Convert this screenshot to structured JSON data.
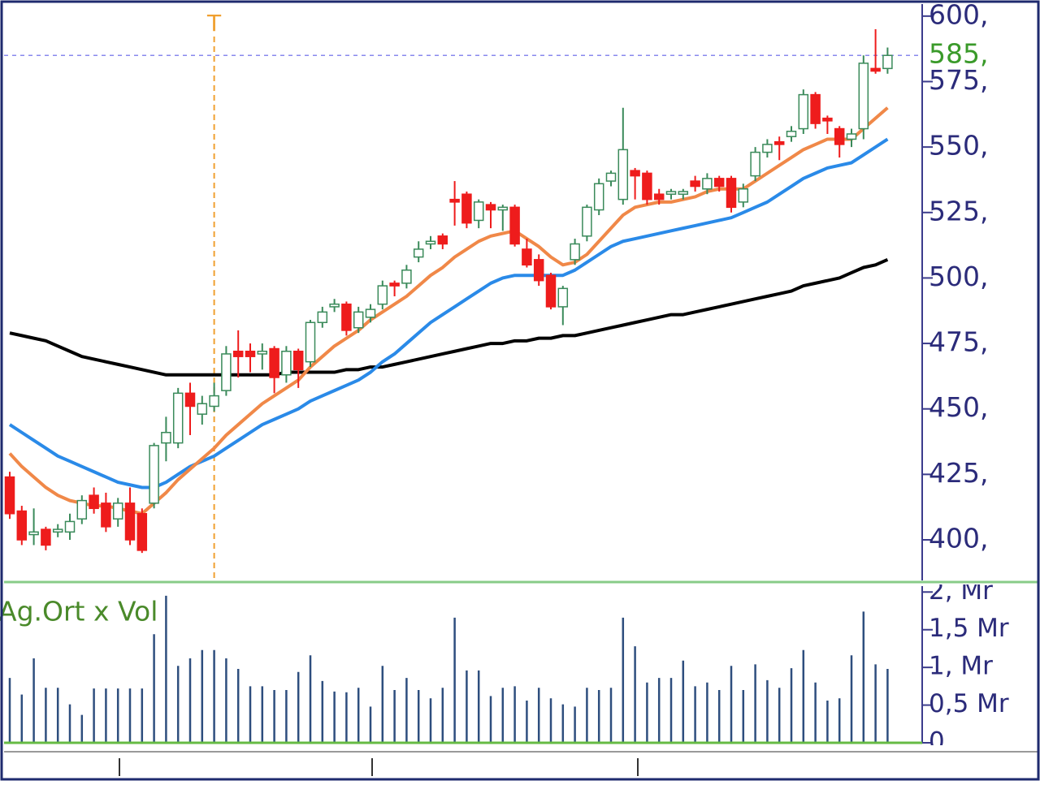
{
  "chart_data": [
    {
      "type": "candlestick",
      "ylim": [
        384.5,
        604.6
      ],
      "yticks": [
        {
          "value": 600,
          "label": "600,"
        },
        {
          "value": 575,
          "label": "575,"
        },
        {
          "value": 550,
          "label": "550,"
        },
        {
          "value": 525,
          "label": "525,"
        },
        {
          "value": 500,
          "label": "500,"
        },
        {
          "value": 475,
          "label": "475,"
        },
        {
          "value": 450,
          "label": "450,"
        },
        {
          "value": 425,
          "label": "425,"
        },
        {
          "value": 400,
          "label": "400,"
        }
      ],
      "last_price": {
        "value": 585,
        "label": "585,",
        "color": "#3a9a2a"
      },
      "annotation": {
        "text": "T",
        "x": 17,
        "color": "#f0a030"
      },
      "up_color": "#3a8a5a",
      "down_color": "#ee1c1c",
      "open": [
        424,
        411,
        402,
        404,
        403,
        403,
        408,
        417,
        414,
        408,
        414,
        410,
        414,
        437,
        437,
        456,
        448,
        451,
        457,
        472,
        472,
        471,
        473,
        463,
        472,
        468,
        483,
        489,
        490,
        481,
        485,
        490,
        498,
        498,
        508,
        513,
        516,
        530,
        532,
        522,
        528,
        526,
        527,
        511,
        507,
        501,
        489,
        507,
        516,
        526,
        537,
        530,
        541,
        540,
        532,
        532,
        532,
        537,
        534,
        538,
        538,
        529,
        539,
        548,
        552,
        554,
        557,
        570,
        561,
        557,
        553,
        557,
        580,
        580
      ],
      "high": [
        426,
        413,
        412,
        405,
        406,
        410,
        417,
        420,
        418,
        416,
        420,
        412,
        437,
        447,
        458,
        460,
        455,
        460,
        474,
        480,
        475,
        475,
        474,
        474,
        473,
        484,
        489,
        492,
        491,
        489,
        490,
        499,
        499,
        505,
        514,
        516,
        517,
        537,
        533,
        530,
        529,
        528,
        528,
        515,
        509,
        502,
        497,
        515,
        528,
        538,
        541,
        565,
        542,
        541,
        534,
        534,
        534,
        539,
        540,
        539,
        539,
        536,
        550,
        553,
        554,
        558,
        572,
        571,
        562,
        558,
        557,
        585,
        595,
        588
      ],
      "low": [
        408,
        398,
        398,
        396,
        401,
        400,
        406,
        410,
        403,
        405,
        398,
        395,
        412,
        430,
        435,
        440,
        444,
        449,
        455,
        462,
        464,
        465,
        456,
        460,
        458,
        466,
        481,
        487,
        478,
        479,
        483,
        488,
        493,
        496,
        506,
        511,
        511,
        520,
        519,
        519,
        519,
        518,
        512,
        504,
        497,
        488,
        482,
        505,
        514,
        524,
        535,
        528,
        530,
        528,
        528,
        530,
        530,
        533,
        532,
        533,
        525,
        527,
        537,
        546,
        545,
        552,
        555,
        557,
        555,
        546,
        550,
        553,
        578,
        578
      ],
      "close": [
        410,
        400,
        403,
        398,
        404,
        407,
        415,
        412,
        405,
        414,
        400,
        396,
        436,
        441,
        456,
        451,
        452,
        455,
        471,
        470,
        470,
        472,
        462,
        472,
        465,
        483,
        487,
        490,
        480,
        487,
        488,
        497,
        497,
        503,
        511,
        514,
        513,
        529,
        521,
        529,
        526,
        527,
        513,
        505,
        499,
        489,
        496,
        513,
        527,
        536,
        540,
        549,
        539,
        530,
        530,
        533,
        533,
        535,
        538,
        535,
        527,
        534,
        548,
        551,
        551,
        556,
        570,
        559,
        560,
        551,
        555,
        582,
        579,
        585
      ],
      "series": [
        {
          "color": "#000000",
          "values": [
            479,
            478,
            477,
            476,
            474,
            472,
            470,
            469,
            468,
            467,
            466,
            465,
            464,
            463,
            463,
            463,
            463,
            463,
            463,
            463,
            463,
            463,
            463,
            464,
            464,
            464,
            464,
            464,
            465,
            465,
            466,
            466,
            467,
            468,
            469,
            470,
            471,
            472,
            473,
            474,
            475,
            475,
            476,
            476,
            477,
            477,
            478,
            478,
            479,
            480,
            481,
            482,
            483,
            484,
            485,
            486,
            486,
            487,
            488,
            489,
            490,
            491,
            492,
            493,
            494,
            495,
            497,
            498,
            499,
            500,
            502,
            504,
            505,
            507
          ]
        },
        {
          "color": "#2a8ae8",
          "values": [
            444,
            441,
            438,
            435,
            432,
            430,
            428,
            426,
            424,
            422,
            421,
            420,
            420,
            422,
            425,
            428,
            430,
            432,
            435,
            438,
            441,
            444,
            446,
            448,
            450,
            453,
            455,
            457,
            459,
            461,
            464,
            468,
            471,
            475,
            479,
            483,
            486,
            489,
            492,
            495,
            498,
            500,
            501,
            501,
            501,
            501,
            501,
            503,
            506,
            509,
            512,
            514,
            515,
            516,
            517,
            518,
            519,
            520,
            521,
            522,
            523,
            525,
            527,
            529,
            532,
            535,
            538,
            540,
            542,
            543,
            544,
            547,
            550,
            553
          ]
        },
        {
          "color": "#f08848",
          "values": [
            433,
            428,
            424,
            420,
            417,
            415,
            414,
            413,
            413,
            412,
            411,
            410,
            414,
            418,
            423,
            427,
            431,
            435,
            440,
            444,
            448,
            452,
            455,
            458,
            461,
            466,
            470,
            474,
            477,
            480,
            484,
            487,
            490,
            493,
            497,
            501,
            504,
            508,
            511,
            514,
            516,
            517,
            518,
            515,
            512,
            508,
            505,
            506,
            509,
            514,
            519,
            524,
            527,
            528,
            529,
            529,
            530,
            531,
            533,
            534,
            534,
            534,
            537,
            540,
            543,
            546,
            549,
            551,
            553,
            553,
            553,
            557,
            561,
            565
          ]
        }
      ]
    },
    {
      "type": "bar",
      "title": "Ag.Ort x Vol",
      "color": "#2e4e7e",
      "ylim": [
        0,
        2.1
      ],
      "yticks": [
        {
          "value": 2,
          "label": "2, Mr"
        },
        {
          "value": 1.5,
          "label": "1,5 Mr"
        },
        {
          "value": 1,
          "label": "1, Mr"
        },
        {
          "value": 0.5,
          "label": "0,5 Mr"
        },
        {
          "value": 0,
          "label": "0"
        }
      ],
      "values": [
        0.86,
        0.64,
        1.12,
        0.73,
        0.73,
        0.51,
        0.37,
        0.72,
        0.72,
        0.72,
        0.72,
        0.72,
        1.44,
        1.95,
        1.02,
        1.12,
        1.23,
        1.23,
        1.12,
        0.98,
        0.75,
        0.75,
        0.7,
        0.7,
        0.94,
        1.16,
        0.82,
        0.68,
        0.67,
        0.73,
        0.48,
        1.02,
        0.7,
        0.86,
        0.7,
        0.59,
        0.73,
        1.66,
        0.96,
        0.96,
        0.62,
        0.73,
        0.75,
        0.56,
        0.73,
        0.59,
        0.51,
        0.48,
        0.73,
        0.7,
        0.73,
        1.66,
        1.28,
        0.8,
        0.86,
        0.86,
        1.09,
        0.75,
        0.8,
        0.7,
        1.02,
        0.7,
        1.04,
        0.83,
        0.73,
        0.99,
        1.23,
        0.8,
        0.56,
        0.59,
        1.16,
        1.74,
        1.04,
        0.98
      ]
    }
  ]
}
